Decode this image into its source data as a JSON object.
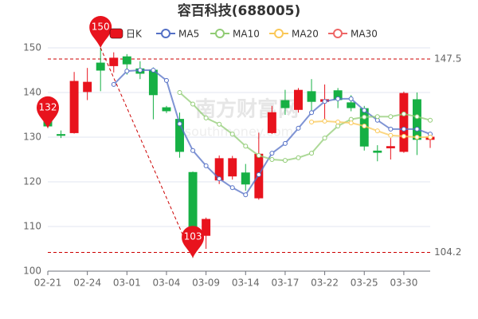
{
  "chart_data": {
    "type": "candlestick",
    "title": "容百科技(688005)",
    "watermark": "南方财富网",
    "watermark_sub": "southmoney.com",
    "categories": [
      "02-21",
      null,
      null,
      "02-24",
      null,
      null,
      "03-01",
      null,
      null,
      "03-04",
      null,
      null,
      "03-09",
      null,
      null,
      "03-14",
      null,
      null,
      "03-17",
      null,
      null,
      "03-22",
      null,
      null,
      "03-25",
      null,
      null,
      "03-30",
      null,
      null
    ],
    "ylim": [
      100,
      150
    ],
    "yticks": [
      100,
      110,
      120,
      130,
      140,
      150
    ],
    "grid": true,
    "up_color": "#e8131d",
    "down_color": "#16b044",
    "series": [
      {
        "name": "日K",
        "type": "candlestick",
        "color": "#e8131d",
        "values": [
          [
            134.5,
            132.5,
            132,
            135
          ],
          [
            130.6,
            130.4,
            129.8,
            131.5
          ],
          [
            131,
            142.5,
            130.8,
            144.6
          ],
          [
            140.2,
            142.3,
            138.3,
            145.5
          ],
          [
            146.6,
            145,
            140.3,
            150
          ],
          [
            146,
            147.7,
            144.5,
            149
          ],
          [
            148,
            146.4,
            144,
            148.6
          ],
          [
            145.3,
            144.3,
            143,
            147
          ],
          [
            145,
            139.5,
            134,
            145.6
          ],
          [
            136.6,
            135.9,
            135.4,
            137
          ],
          [
            134,
            126.8,
            125.4,
            135.5
          ],
          [
            122.1,
            108.9,
            103,
            122.3
          ],
          [
            108,
            111.6,
            105,
            112
          ],
          [
            120.4,
            125.2,
            119.5,
            125.9
          ],
          [
            121.3,
            125.2,
            120.5,
            125.8
          ],
          [
            122,
            119.5,
            118,
            124
          ],
          [
            116.4,
            126.2,
            116,
            131
          ],
          [
            131,
            135.5,
            130.7,
            137
          ],
          [
            138.2,
            136.6,
            135,
            140.6
          ],
          [
            136.2,
            140.5,
            135.5,
            141
          ],
          [
            140.2,
            138,
            136,
            143
          ],
          [
            138,
            138.4,
            134,
            141.8
          ],
          [
            140.4,
            138.4,
            136.5,
            141
          ],
          [
            137.7,
            136.6,
            135.8,
            139.4
          ],
          [
            136.4,
            128,
            127,
            137
          ],
          [
            126.9,
            126.6,
            124.6,
            128.2
          ],
          [
            127.6,
            127.9,
            125,
            129.8
          ],
          [
            126.8,
            139.8,
            126.5,
            140.2
          ],
          [
            138.4,
            129.5,
            126,
            140
          ],
          [
            129.5,
            130,
            127.6,
            130.6
          ]
        ]
      },
      {
        "name": "MA5",
        "type": "line",
        "color": "#5470c6",
        "values": [
          null,
          null,
          null,
          null,
          null,
          141.8,
          144.8,
          145,
          145,
          142.7,
          133,
          127,
          123.6,
          120.7,
          118.7,
          117.1,
          121.6,
          126.4,
          128.6,
          132,
          135.5,
          138,
          138.6,
          138.6,
          136,
          133.8,
          131.8,
          131.8,
          131.8,
          130.7
        ]
      },
      {
        "name": "MA10",
        "type": "line",
        "color": "#91cc75",
        "values": [
          null,
          null,
          null,
          null,
          null,
          null,
          null,
          null,
          null,
          null,
          140,
          137.4,
          134.3,
          132.9,
          130.7,
          128,
          125.9,
          125,
          124.8,
          125.4,
          126.4,
          129.8,
          132.5,
          134,
          134.5,
          134.6,
          134.6,
          135.2,
          134.6,
          133.8
        ]
      },
      {
        "name": "MA20",
        "type": "line",
        "color": "#fac858",
        "values": [
          null,
          null,
          null,
          null,
          null,
          null,
          null,
          null,
          null,
          null,
          null,
          null,
          null,
          null,
          null,
          null,
          null,
          null,
          null,
          null,
          133.4,
          133.6,
          133.4,
          133.2,
          132.5,
          131.4,
          130.4,
          130.2,
          130,
          130
        ]
      },
      {
        "name": "MA30",
        "type": "line",
        "color": "#ee6666",
        "values": [
          null,
          null,
          null,
          null,
          null,
          null,
          null,
          null,
          null,
          null,
          null,
          null,
          null,
          null,
          null,
          null,
          null,
          null,
          null,
          null,
          null,
          null,
          null,
          null,
          null,
          null,
          null,
          null,
          null,
          null
        ]
      }
    ],
    "mark_points": [
      {
        "value": 150
      },
      {
        "value": 132
      },
      {
        "value": 103
      }
    ],
    "mark_lines": [
      147.5,
      104.2
    ]
  }
}
